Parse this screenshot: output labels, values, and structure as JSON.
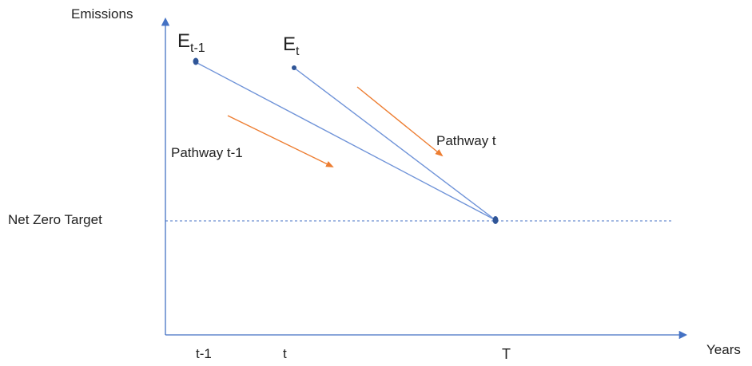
{
  "axes": {
    "y_label": "Emissions",
    "x_label": "Years",
    "x_ticks": [
      "t-1",
      "t",
      "T"
    ]
  },
  "reference_line": {
    "label": "Net Zero Target"
  },
  "points": [
    {
      "base": "E",
      "subscript": "t-1"
    },
    {
      "base": "E",
      "subscript": "t"
    }
  ],
  "pathways": [
    {
      "label": "Pathway t-1"
    },
    {
      "label": "Pathway t"
    }
  ],
  "colors": {
    "axis": "#4472c4",
    "line": "#6f93d8",
    "point": "#2f5597",
    "arrow": "#ed7d31",
    "dashed": "#4472c4"
  }
}
